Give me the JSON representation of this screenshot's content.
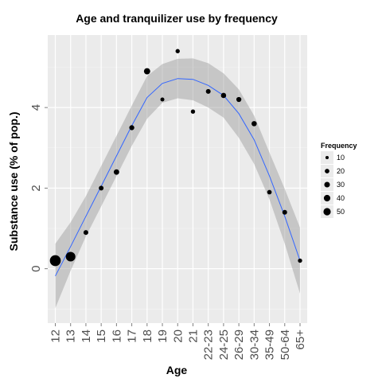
{
  "chart_data": {
    "type": "scatter",
    "title": "Age and tranquilizer use by frequency",
    "xlabel": "Age",
    "ylabel": "Substance use (% of pop.)",
    "categories": [
      "12",
      "13",
      "14",
      "15",
      "16",
      "17",
      "18",
      "19",
      "20",
      "21",
      "22-23",
      "24-25",
      "26-29",
      "30-34",
      "35-49",
      "50-64",
      "65+"
    ],
    "y_ticks": [
      0,
      2,
      4
    ],
    "ylim": [
      -1.35,
      5.8
    ],
    "grid": true,
    "legend_position": "right",
    "series": [
      {
        "type": "scatter",
        "values": [
          0.2,
          0.3,
          0.9,
          2.0,
          2.4,
          3.5,
          4.9,
          4.2,
          5.4,
          3.9,
          4.4,
          4.3,
          4.2,
          3.6,
          1.9,
          1.4,
          0.2
        ],
        "sizes": [
          52,
          40,
          10,
          10,
          13,
          11,
          17,
          7,
          8,
          8,
          10,
          12,
          11,
          12,
          9,
          10,
          8
        ]
      },
      {
        "type": "line",
        "name": "",
        "color": "#3366ff",
        "values": [
          -0.18,
          0.55,
          1.3,
          2.05,
          2.8,
          3.55,
          4.25,
          4.6,
          4.72,
          4.7,
          4.55,
          4.3,
          3.85,
          3.2,
          2.3,
          1.3,
          0.2
        ],
        "band_lower": [
          -0.98,
          -0.05,
          0.8,
          1.55,
          2.3,
          3.05,
          3.72,
          4.12,
          4.23,
          4.18,
          4.0,
          3.75,
          3.25,
          2.6,
          1.72,
          0.62,
          -0.62
        ],
        "band_upper": [
          0.62,
          1.15,
          1.8,
          2.55,
          3.3,
          4.05,
          4.78,
          5.08,
          5.21,
          5.22,
          5.1,
          4.85,
          4.45,
          3.8,
          2.88,
          1.98,
          1.02
        ]
      }
    ],
    "legend": {
      "title": "Frequency",
      "entries": [
        {
          "label": "10",
          "value": 10
        },
        {
          "label": "20",
          "value": 20
        },
        {
          "label": "30",
          "value": 30
        },
        {
          "label": "40",
          "value": 40
        },
        {
          "label": "50",
          "value": 50
        }
      ]
    },
    "colors": {
      "panel": "#ebebeb",
      "grid_major": "#ffffff",
      "grid_minor": "#f5f5f5",
      "band": "#999999",
      "point": "#000000",
      "line": "#3366ff"
    }
  }
}
